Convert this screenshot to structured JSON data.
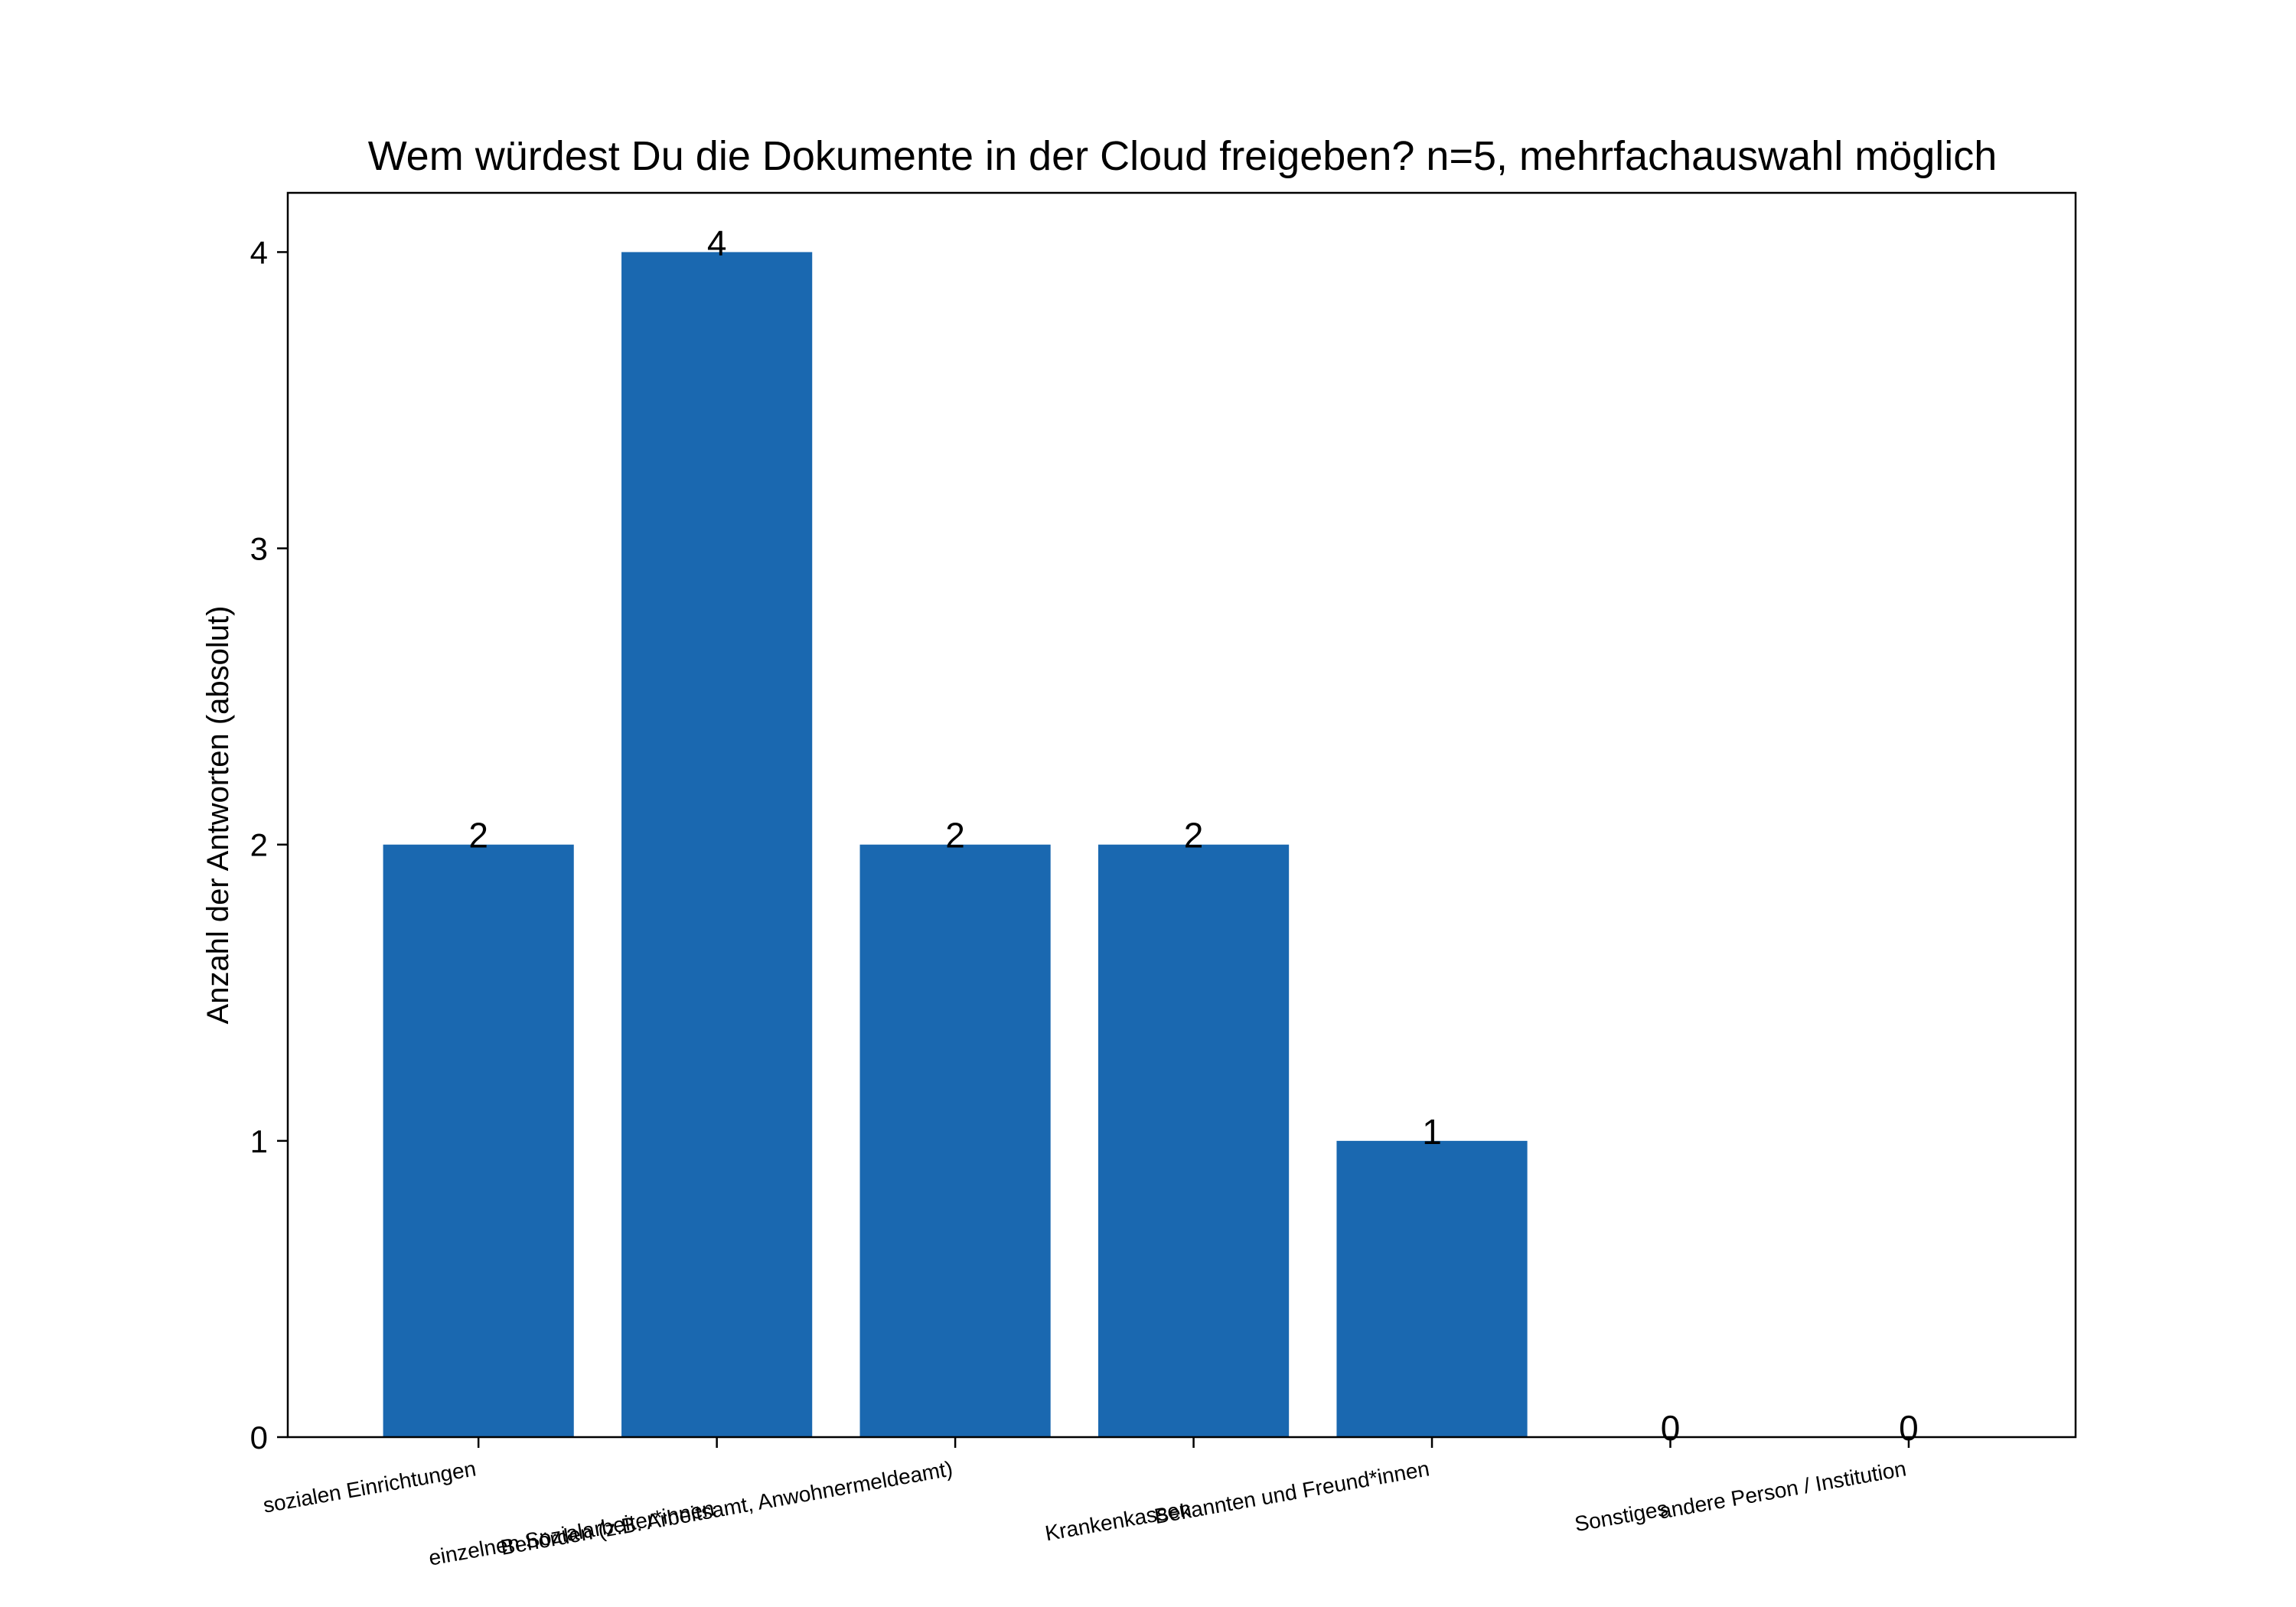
{
  "chart_data": {
    "type": "bar",
    "title": "Wem würdest Du die Dokumente in der Cloud freigeben? n=5, mehrfachauswahl möglich",
    "xlabel": "",
    "ylabel": "Anzahl der Antworten (absolut)",
    "categories": [
      "sozialen Einrichtungen",
      "einzelnen Sozialarbeiter*innen",
      "Behörden (z.B. Arbeitsamt, Anwohnermeldeamt)",
      "Krankenkassen",
      "Bekannten und Freund*innen",
      "Sonstiges",
      "andere Person / Institution"
    ],
    "values": [
      2,
      4,
      2,
      2,
      1,
      0,
      0
    ],
    "ylim": [
      0,
      4.2
    ],
    "yticks": [
      0,
      1,
      2,
      3,
      4
    ],
    "bar_color": "#1a68b0",
    "grid": false,
    "legend": "none"
  }
}
